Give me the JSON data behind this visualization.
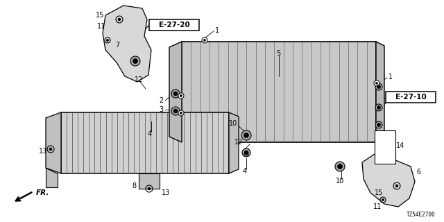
{
  "bg_color": "#ffffff",
  "fig_width": 6.4,
  "fig_height": 3.2,
  "dpi": 100,
  "labels": {
    "e2720": "E-27-20",
    "e2710": "E-27-10",
    "fr": "FR.",
    "diagram_id": "TZ54E2700"
  },
  "line_color": "#000000",
  "text_color": "#000000",
  "radiator_face_color": "#c8c8c8",
  "radiator_side_color": "#bbbbbb",
  "cooler_face_color": "#d0d0d0",
  "bracket_color": "#d8d8d8",
  "hatch_color": "#666666",
  "fin_color": "#555555"
}
